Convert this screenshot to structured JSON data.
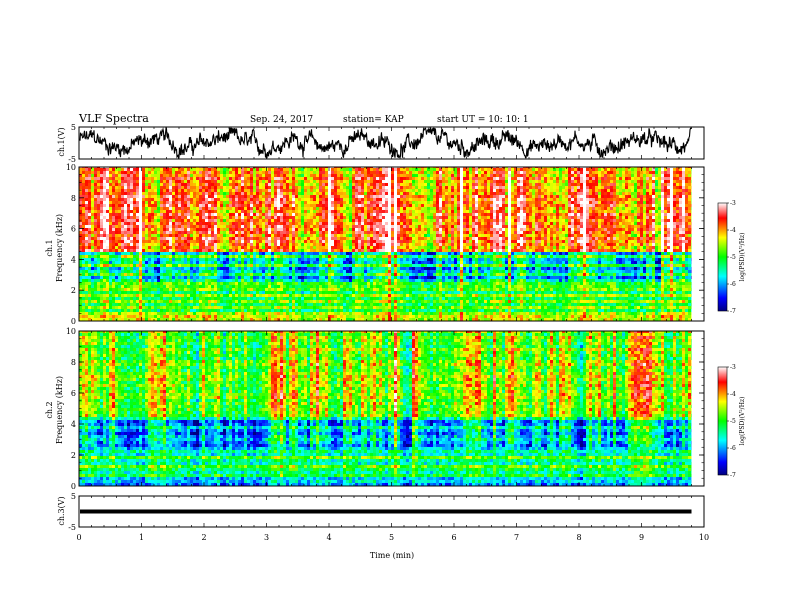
{
  "chart_data": {
    "type": "heatmap",
    "header": {
      "title": "VLF Spectra",
      "date": "Sep. 24, 2017",
      "station": "station= KAP",
      "start": "start  UT  =   10: 10: 1"
    },
    "x_axis": {
      "label": "Time  (min)",
      "range": [
        0,
        10
      ],
      "ticks": [
        "0",
        "1",
        "2",
        "3",
        "4",
        "5",
        "6",
        "7",
        "8",
        "9",
        "10"
      ],
      "data_end": 9.8
    },
    "panels": [
      {
        "id": "ch1-waveform",
        "type": "line",
        "ylabel": "ch.1(V)",
        "yrange": [
          -5,
          5
        ],
        "yticks": [
          "5",
          "-5"
        ]
      },
      {
        "id": "ch1-spectrogram",
        "type": "heatmap",
        "ylabel_1": "ch.1",
        "ylabel_2": "Frequency  (kHz)",
        "yrange": [
          0,
          10
        ],
        "yticks": [
          "0",
          "2",
          "4",
          "6",
          "8",
          "10"
        ]
      },
      {
        "id": "ch2-spectrogram",
        "type": "heatmap",
        "ylabel_1": "ch.2",
        "ylabel_2": "Frequency  (kHz)",
        "yrange": [
          0,
          10
        ],
        "yticks": [
          "0",
          "2",
          "4",
          "6",
          "8",
          "10"
        ]
      },
      {
        "id": "ch3-waveform",
        "type": "line",
        "ylabel": "ch.3(V)",
        "yrange": [
          -5,
          5
        ],
        "yticks": [
          "5",
          "-5"
        ],
        "level": 0
      }
    ],
    "colorbar": {
      "label": "log(PSD)(V²/Hz)",
      "range": [
        -7,
        -3
      ],
      "ticks": [
        "-3",
        "-4",
        "-5",
        "-6",
        "-7"
      ],
      "colors": [
        "#000080",
        "#0000ff",
        "#00ffff",
        "#00ff00",
        "#ffff00",
        "#ff0000",
        "#ffffff"
      ]
    }
  }
}
